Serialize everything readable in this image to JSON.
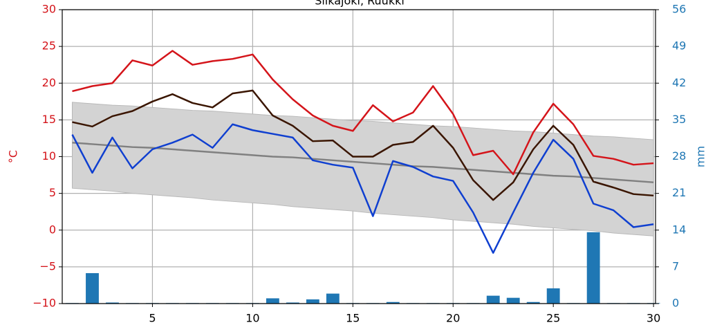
{
  "chart_data": {
    "type": "line",
    "title": "Siikajoki, Ruukki",
    "ylabel": "°C",
    "y2label": "mm",
    "xlim": [
      0.5,
      30.1
    ],
    "xticks": [
      5,
      10,
      15,
      20,
      25,
      30
    ],
    "ylim": [
      -10,
      30
    ],
    "yticks": [
      -10,
      -5,
      0,
      5,
      10,
      15,
      20,
      25,
      30
    ],
    "yticks_labels": [
      "−10",
      "−5",
      "0",
      "5",
      "10",
      "15",
      "20",
      "25",
      "30"
    ],
    "y2lim": [
      0,
      56
    ],
    "y2ticks": [
      0,
      7,
      14,
      21,
      28,
      35,
      42,
      49,
      56
    ],
    "grid": true,
    "x": [
      1,
      2,
      3,
      4,
      5,
      6,
      7,
      8,
      9,
      10,
      11,
      12,
      13,
      14,
      15,
      16,
      17,
      18,
      19,
      20,
      21,
      22,
      23,
      24,
      25,
      26,
      27,
      28,
      29,
      30
    ],
    "band": {
      "color": "#d3d3d3",
      "upper": [
        17.4,
        17.2,
        17.0,
        16.9,
        16.7,
        16.5,
        16.3,
        16.2,
        16.0,
        15.8,
        15.6,
        15.5,
        15.3,
        15.1,
        14.9,
        14.8,
        14.6,
        14.4,
        14.2,
        14.1,
        13.9,
        13.7,
        13.5,
        13.4,
        13.2,
        13.0,
        12.8,
        12.7,
        12.5,
        12.3
      ],
      "lower": [
        5.7,
        5.5,
        5.3,
        5.0,
        4.8,
        4.6,
        4.4,
        4.1,
        3.9,
        3.7,
        3.5,
        3.2,
        3.0,
        2.8,
        2.6,
        2.3,
        2.1,
        1.9,
        1.7,
        1.4,
        1.2,
        1.0,
        0.8,
        0.5,
        0.3,
        0.1,
        -0.1,
        -0.4,
        -0.6,
        -0.8
      ]
    },
    "series": [
      {
        "type": "bar",
        "axis": "y2",
        "color": "#1f77b4",
        "values": [
          0.1,
          5.8,
          0.2,
          0.1,
          0.1,
          0.1,
          0.1,
          0.1,
          0.1,
          0.1,
          1.0,
          0.2,
          0.8,
          1.9,
          0.1,
          0.1,
          0.3,
          0.1,
          0.1,
          0.1,
          0.1,
          1.5,
          1.1,
          0.3,
          2.9,
          0.1,
          13.6,
          0.1,
          0.1,
          0.1
        ]
      },
      {
        "type": "line",
        "color": "#808080",
        "values": [
          11.9,
          11.7,
          11.5,
          11.3,
          11.2,
          11.0,
          10.8,
          10.6,
          10.4,
          10.2,
          10.0,
          9.9,
          9.7,
          9.5,
          9.3,
          9.1,
          8.9,
          8.7,
          8.6,
          8.4,
          8.2,
          8.0,
          7.8,
          7.6,
          7.4,
          7.3,
          7.1,
          6.9,
          6.7,
          6.5
        ]
      },
      {
        "type": "line",
        "color": "#d4141a",
        "values": [
          18.9,
          19.6,
          20.0,
          23.1,
          22.4,
          24.4,
          22.5,
          23.0,
          23.3,
          23.9,
          20.5,
          17.8,
          15.6,
          14.2,
          13.5,
          17.0,
          14.8,
          16.0,
          19.6,
          15.8,
          10.2,
          10.8,
          7.6,
          13.3,
          17.2,
          14.4,
          10.1,
          9.7,
          8.9,
          9.1
        ]
      },
      {
        "type": "line",
        "color": "#3a1500",
        "values": [
          14.7,
          14.1,
          15.5,
          16.2,
          17.5,
          18.5,
          17.3,
          16.7,
          18.6,
          19.0,
          15.6,
          14.2,
          12.1,
          12.2,
          10.0,
          10.0,
          11.6,
          12.0,
          14.2,
          11.2,
          6.8,
          4.1,
          6.5,
          11.0,
          14.2,
          11.6,
          6.6,
          5.8,
          4.9,
          4.7
        ]
      },
      {
        "type": "line",
        "color": "#0f3fd0",
        "values": [
          13.0,
          7.8,
          12.6,
          8.4,
          11.0,
          11.9,
          13.0,
          11.2,
          14.4,
          13.6,
          13.1,
          12.6,
          9.5,
          8.9,
          8.5,
          1.9,
          9.4,
          8.6,
          7.3,
          6.7,
          2.4,
          -3.1,
          2.4,
          7.8,
          12.3,
          9.7,
          3.6,
          2.7,
          0.4,
          0.8
        ]
      }
    ]
  }
}
